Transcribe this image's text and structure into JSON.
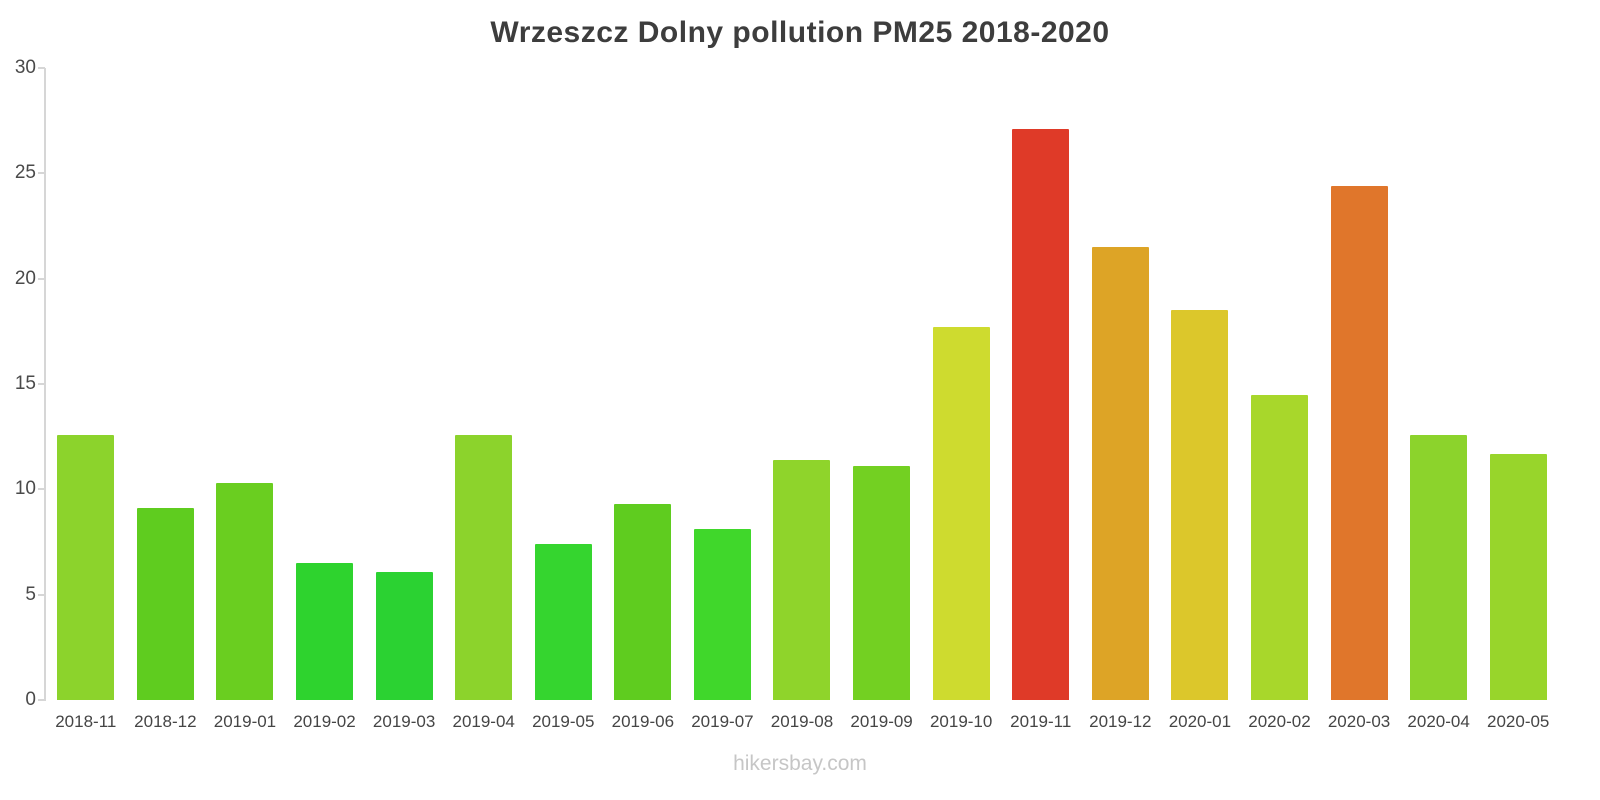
{
  "footer": "hikersbay.com",
  "chart_data": {
    "type": "bar",
    "title": "Wrzeszcz Dolny pollution PM25 2018-2020",
    "xlabel": "",
    "ylabel": "",
    "ylim": [
      0,
      30
    ],
    "yticks": [
      0,
      5,
      10,
      15,
      20,
      25,
      30
    ],
    "grid": false,
    "legend_position": "none",
    "categories": [
      "2018-11",
      "2018-12",
      "2019-01",
      "2019-02",
      "2019-03",
      "2019-04",
      "2019-05",
      "2019-06",
      "2019-07",
      "2019-08",
      "2019-09",
      "2019-10",
      "2019-11",
      "2019-12",
      "2020-01",
      "2020-02",
      "2020-03",
      "2020-04",
      "2020-05"
    ],
    "values": [
      12.6,
      9.1,
      10.3,
      6.5,
      6.1,
      12.6,
      7.4,
      9.3,
      8.1,
      11.4,
      11.1,
      17.7,
      27.1,
      21.5,
      18.5,
      14.5,
      24.4,
      12.6,
      11.7
    ],
    "colors": [
      "#8cd32c",
      "#5fcc1f",
      "#6ace20",
      "#2ed32e",
      "#2bd232",
      "#8cd32c",
      "#35d52f",
      "#5fcc1f",
      "#40d72b",
      "#8fd42b",
      "#73d022",
      "#cedb2f",
      "#df3a28",
      "#dda426",
      "#dcc72b",
      "#a8d72b",
      "#e0762b",
      "#8cd32c",
      "#98d52b"
    ]
  }
}
